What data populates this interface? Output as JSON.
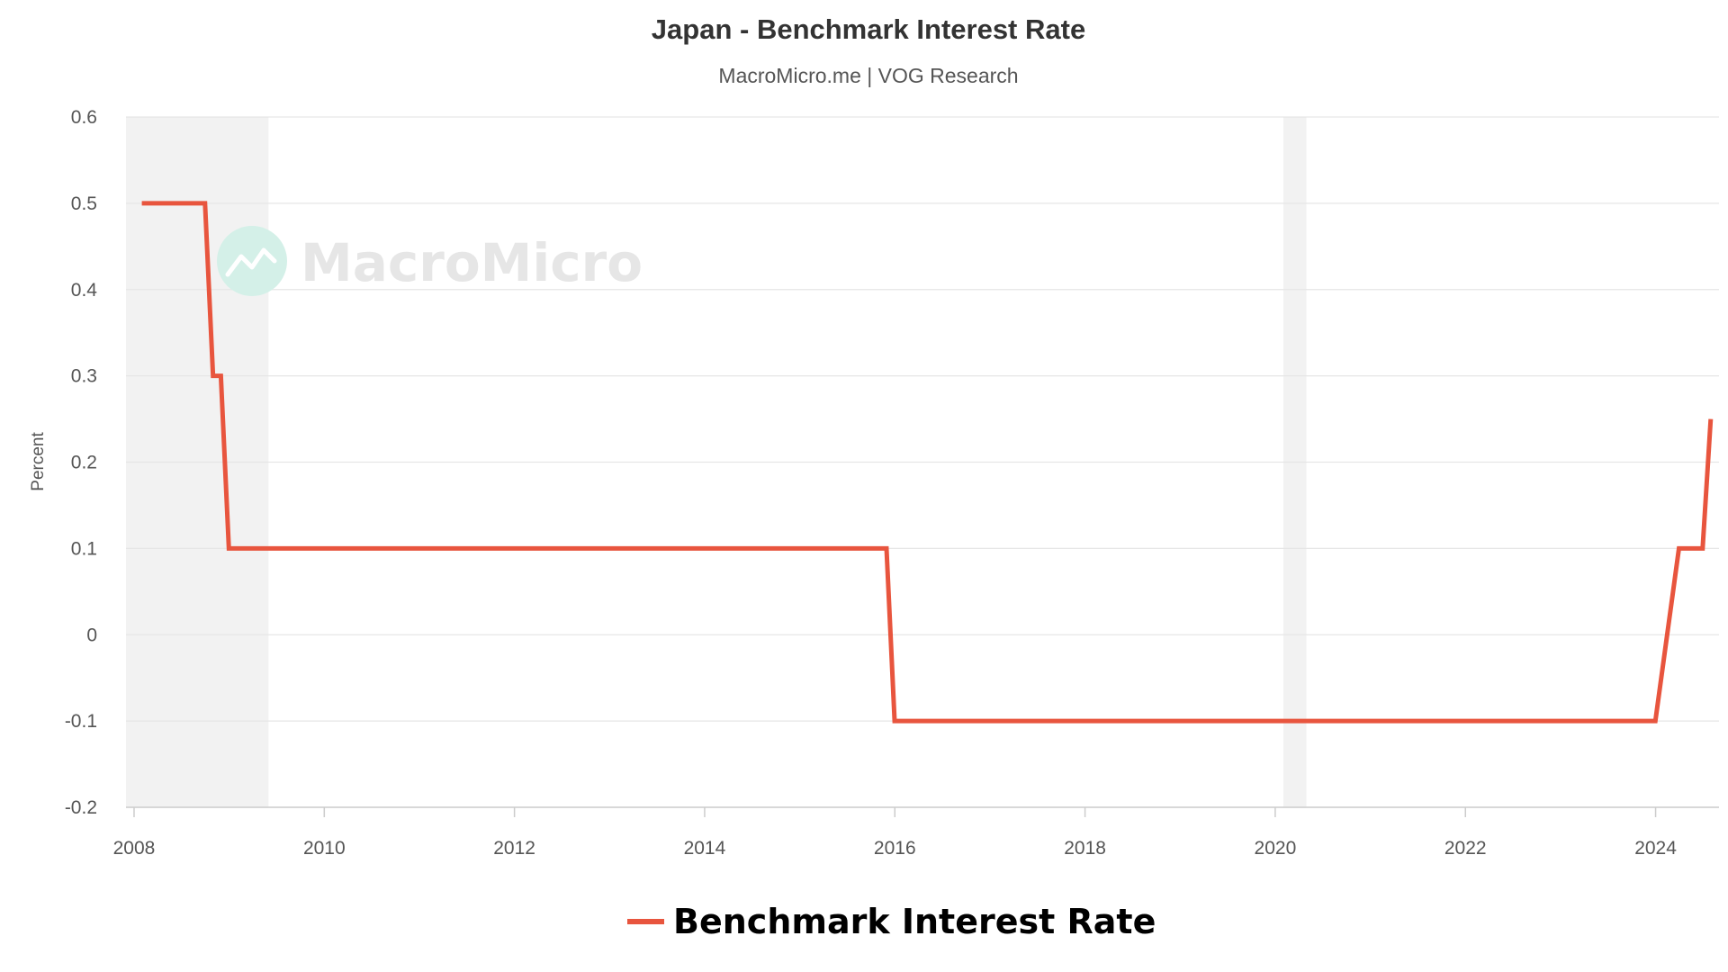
{
  "chart_data": {
    "type": "line",
    "title": "Japan - Benchmark Interest Rate",
    "subtitle": "MacroMicro.me | VOG Research",
    "ylabel": "Percent",
    "xlabel": "",
    "ylim": [
      -0.2,
      0.6
    ],
    "xlim": [
      "2007-12-01",
      "2024-09-01"
    ],
    "y_ticks": [
      "0.6",
      "0.5",
      "0.4",
      "0.3",
      "0.2",
      "0.1",
      "0",
      "-0.1",
      "-0.2"
    ],
    "x_ticks": [
      "2008",
      "2010",
      "2012",
      "2014",
      "2016",
      "2018",
      "2020",
      "2022",
      "2024"
    ],
    "grid": true,
    "legend_position": "bottom-center",
    "recession_bands": [
      {
        "start": "2007-12-01",
        "end": "2009-06-01"
      },
      {
        "start": "2020-02-01",
        "end": "2020-04-30"
      }
    ],
    "series": [
      {
        "name": "Benchmark Interest Rate",
        "color": "#e8553e",
        "points": [
          {
            "x": "2008-01-31",
            "y": 0.5
          },
          {
            "x": "2008-09-30",
            "y": 0.5
          },
          {
            "x": "2008-10-31",
            "y": 0.3
          },
          {
            "x": "2008-11-30",
            "y": 0.3
          },
          {
            "x": "2008-12-31",
            "y": 0.1
          },
          {
            "x": "2015-11-30",
            "y": 0.1
          },
          {
            "x": "2015-12-31",
            "y": -0.1
          },
          {
            "x": "2023-12-31",
            "y": -0.1
          },
          {
            "x": "2024-03-31",
            "y": 0.1
          },
          {
            "x": "2024-06-30",
            "y": 0.1
          },
          {
            "x": "2024-07-31",
            "y": 0.25
          }
        ]
      }
    ]
  },
  "watermark": {
    "text": "MacroMicro",
    "icon": "chart-trend-icon",
    "color": "#d4f0e8"
  },
  "colors": {
    "grid": "#e6e6e6",
    "band": "#f2f2f2",
    "axis": "#cccccc"
  }
}
